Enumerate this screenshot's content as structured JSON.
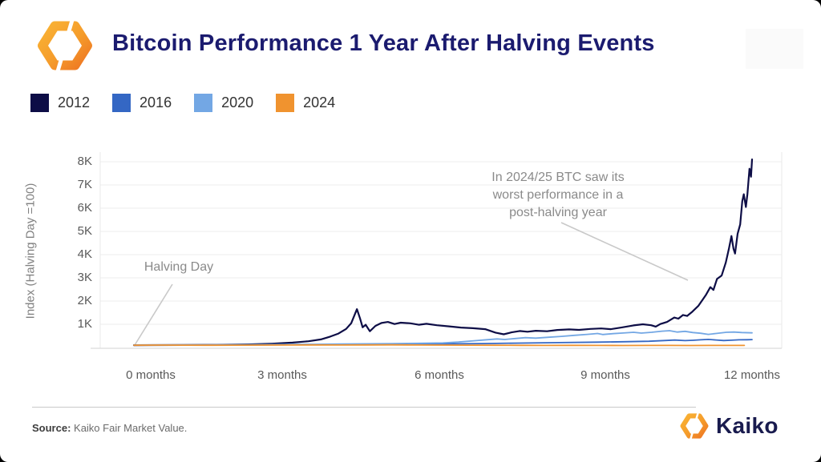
{
  "header": {
    "title": "Bitcoin Performance 1 Year After Halving Events"
  },
  "legend": {
    "items": [
      {
        "label": "2012",
        "color": "#0d0d46"
      },
      {
        "label": "2016",
        "color": "#3467c4"
      },
      {
        "label": "2020",
        "color": "#73a7e4"
      },
      {
        "label": "2024",
        "color": "#f0932f"
      }
    ]
  },
  "chart_data": {
    "type": "line",
    "title": "Bitcoin Performance 1 Year After Halving Events",
    "xlabel": "",
    "ylabel": "Index (Halving Day =100)",
    "yticks": [
      "8K",
      "7K",
      "6K",
      "5K",
      "4K",
      "3K",
      "2K",
      "1K"
    ],
    "xticks": [
      "0 months",
      "3 months",
      "6 months",
      "9 months",
      "12 months"
    ],
    "x_range_months": [
      0,
      12
    ],
    "ylim": [
      0,
      8400
    ],
    "grid": "horizontal",
    "legend_position": "top-left",
    "annotations": [
      {
        "id": "halving-day",
        "lines": [
          "Halving Day"
        ]
      },
      {
        "id": "worst-performance",
        "lines": [
          "In 2024/25 BTC saw its",
          "worst performance in a",
          "post-halving year"
        ]
      }
    ],
    "series": [
      {
        "name": "2012",
        "points": [
          [
            0,
            100
          ],
          [
            0.36,
            103
          ],
          [
            0.98,
            108
          ],
          [
            1.6,
            115
          ],
          [
            2.23,
            135
          ],
          [
            2.69,
            165
          ],
          [
            3.08,
            210
          ],
          [
            3.39,
            270
          ],
          [
            3.63,
            350
          ],
          [
            3.81,
            470
          ],
          [
            3.97,
            600
          ],
          [
            4.12,
            800
          ],
          [
            4.22,
            1050
          ],
          [
            4.33,
            1650
          ],
          [
            4.39,
            1250
          ],
          [
            4.44,
            870
          ],
          [
            4.5,
            980
          ],
          [
            4.58,
            700
          ],
          [
            4.69,
            930
          ],
          [
            4.81,
            1060
          ],
          [
            4.93,
            1100
          ],
          [
            5.06,
            1010
          ],
          [
            5.18,
            1070
          ],
          [
            5.37,
            1040
          ],
          [
            5.53,
            980
          ],
          [
            5.68,
            1020
          ],
          [
            5.88,
            960
          ],
          [
            6.12,
            910
          ],
          [
            6.35,
            860
          ],
          [
            6.58,
            830
          ],
          [
            6.82,
            790
          ],
          [
            7.02,
            640
          ],
          [
            7.18,
            570
          ],
          [
            7.33,
            650
          ],
          [
            7.49,
            710
          ],
          [
            7.64,
            680
          ],
          [
            7.8,
            720
          ],
          [
            8.02,
            700
          ],
          [
            8.22,
            755
          ],
          [
            8.45,
            780
          ],
          [
            8.64,
            760
          ],
          [
            8.86,
            800
          ],
          [
            9.07,
            820
          ],
          [
            9.26,
            790
          ],
          [
            9.46,
            860
          ],
          [
            9.7,
            950
          ],
          [
            9.88,
            1000
          ],
          [
            10.04,
            960
          ],
          [
            10.13,
            900
          ],
          [
            10.22,
            1010
          ],
          [
            10.35,
            1100
          ],
          [
            10.49,
            1290
          ],
          [
            10.57,
            1240
          ],
          [
            10.66,
            1400
          ],
          [
            10.74,
            1360
          ],
          [
            10.83,
            1520
          ],
          [
            10.96,
            1800
          ],
          [
            11.1,
            2250
          ],
          [
            11.19,
            2600
          ],
          [
            11.25,
            2480
          ],
          [
            11.32,
            2950
          ],
          [
            11.41,
            3100
          ],
          [
            11.49,
            3650
          ],
          [
            11.55,
            4250
          ],
          [
            11.6,
            4800
          ],
          [
            11.64,
            4250
          ],
          [
            11.67,
            4050
          ],
          [
            11.72,
            4900
          ],
          [
            11.77,
            5300
          ],
          [
            11.81,
            6300
          ],
          [
            11.84,
            6600
          ],
          [
            11.88,
            6050
          ],
          [
            11.91,
            6600
          ],
          [
            11.95,
            7700
          ],
          [
            11.98,
            7350
          ],
          [
            12,
            8100
          ]
        ]
      },
      {
        "name": "2016",
        "points": [
          [
            0,
            100
          ],
          [
            0.75,
            104
          ],
          [
            1.5,
            108
          ],
          [
            2.25,
            112
          ],
          [
            3,
            118
          ],
          [
            3.75,
            124
          ],
          [
            4.5,
            130
          ],
          [
            5.25,
            140
          ],
          [
            6,
            155
          ],
          [
            6.75,
            170
          ],
          [
            7.5,
            190
          ],
          [
            8.25,
            210
          ],
          [
            9,
            230
          ],
          [
            9.5,
            250
          ],
          [
            10,
            270
          ],
          [
            10.3,
            300
          ],
          [
            10.5,
            320
          ],
          [
            10.7,
            295
          ],
          [
            10.85,
            310
          ],
          [
            11,
            330
          ],
          [
            11.15,
            350
          ],
          [
            11.3,
            325
          ],
          [
            11.45,
            300
          ],
          [
            11.6,
            315
          ],
          [
            11.75,
            330
          ],
          [
            11.9,
            335
          ],
          [
            12,
            340
          ]
        ]
      },
      {
        "name": "2020",
        "points": [
          [
            0,
            100
          ],
          [
            0.75,
            106
          ],
          [
            1.5,
            112
          ],
          [
            2.25,
            120
          ],
          [
            3,
            130
          ],
          [
            3.5,
            138
          ],
          [
            4,
            148
          ],
          [
            4.5,
            158
          ],
          [
            5,
            168
          ],
          [
            5.5,
            180
          ],
          [
            6,
            195
          ],
          [
            6.3,
            235
          ],
          [
            6.6,
            290
          ],
          [
            6.85,
            335
          ],
          [
            7.05,
            370
          ],
          [
            7.2,
            345
          ],
          [
            7.4,
            385
          ],
          [
            7.6,
            425
          ],
          [
            7.8,
            405
          ],
          [
            8.05,
            440
          ],
          [
            8.3,
            480
          ],
          [
            8.55,
            525
          ],
          [
            8.8,
            565
          ],
          [
            9,
            605
          ],
          [
            9.1,
            560
          ],
          [
            9.3,
            595
          ],
          [
            9.5,
            625
          ],
          [
            9.7,
            655
          ],
          [
            9.85,
            620
          ],
          [
            10.05,
            655
          ],
          [
            10.25,
            705
          ],
          [
            10.4,
            725
          ],
          [
            10.55,
            665
          ],
          [
            10.7,
            695
          ],
          [
            10.85,
            645
          ],
          [
            11,
            615
          ],
          [
            11.15,
            565
          ],
          [
            11.3,
            605
          ],
          [
            11.5,
            655
          ],
          [
            11.65,
            665
          ],
          [
            11.8,
            645
          ],
          [
            12,
            630
          ]
        ]
      },
      {
        "name": "2024",
        "points": [
          [
            0,
            100
          ],
          [
            0.5,
            103
          ],
          [
            1,
            100
          ],
          [
            1.5,
            97
          ],
          [
            2,
            100
          ],
          [
            2.5,
            104
          ],
          [
            3,
            107
          ],
          [
            3.5,
            110
          ],
          [
            4,
            106
          ],
          [
            4.5,
            112
          ],
          [
            5,
            114
          ],
          [
            5.5,
            108
          ],
          [
            6,
            104
          ],
          [
            6.5,
            99
          ],
          [
            7,
            96
          ],
          [
            7.5,
            92
          ],
          [
            8,
            90
          ],
          [
            8.5,
            94
          ],
          [
            9,
            89
          ],
          [
            9.5,
            86
          ],
          [
            10,
            91
          ],
          [
            10.4,
            88
          ],
          [
            10.8,
            86
          ],
          [
            11.2,
            90
          ],
          [
            11.6,
            88
          ],
          [
            11.85,
            90
          ]
        ]
      }
    ]
  },
  "footer": {
    "source_label": "Source:",
    "source_text": " Kaiko Fair Market Value.",
    "brand_name": "Kaiko"
  }
}
